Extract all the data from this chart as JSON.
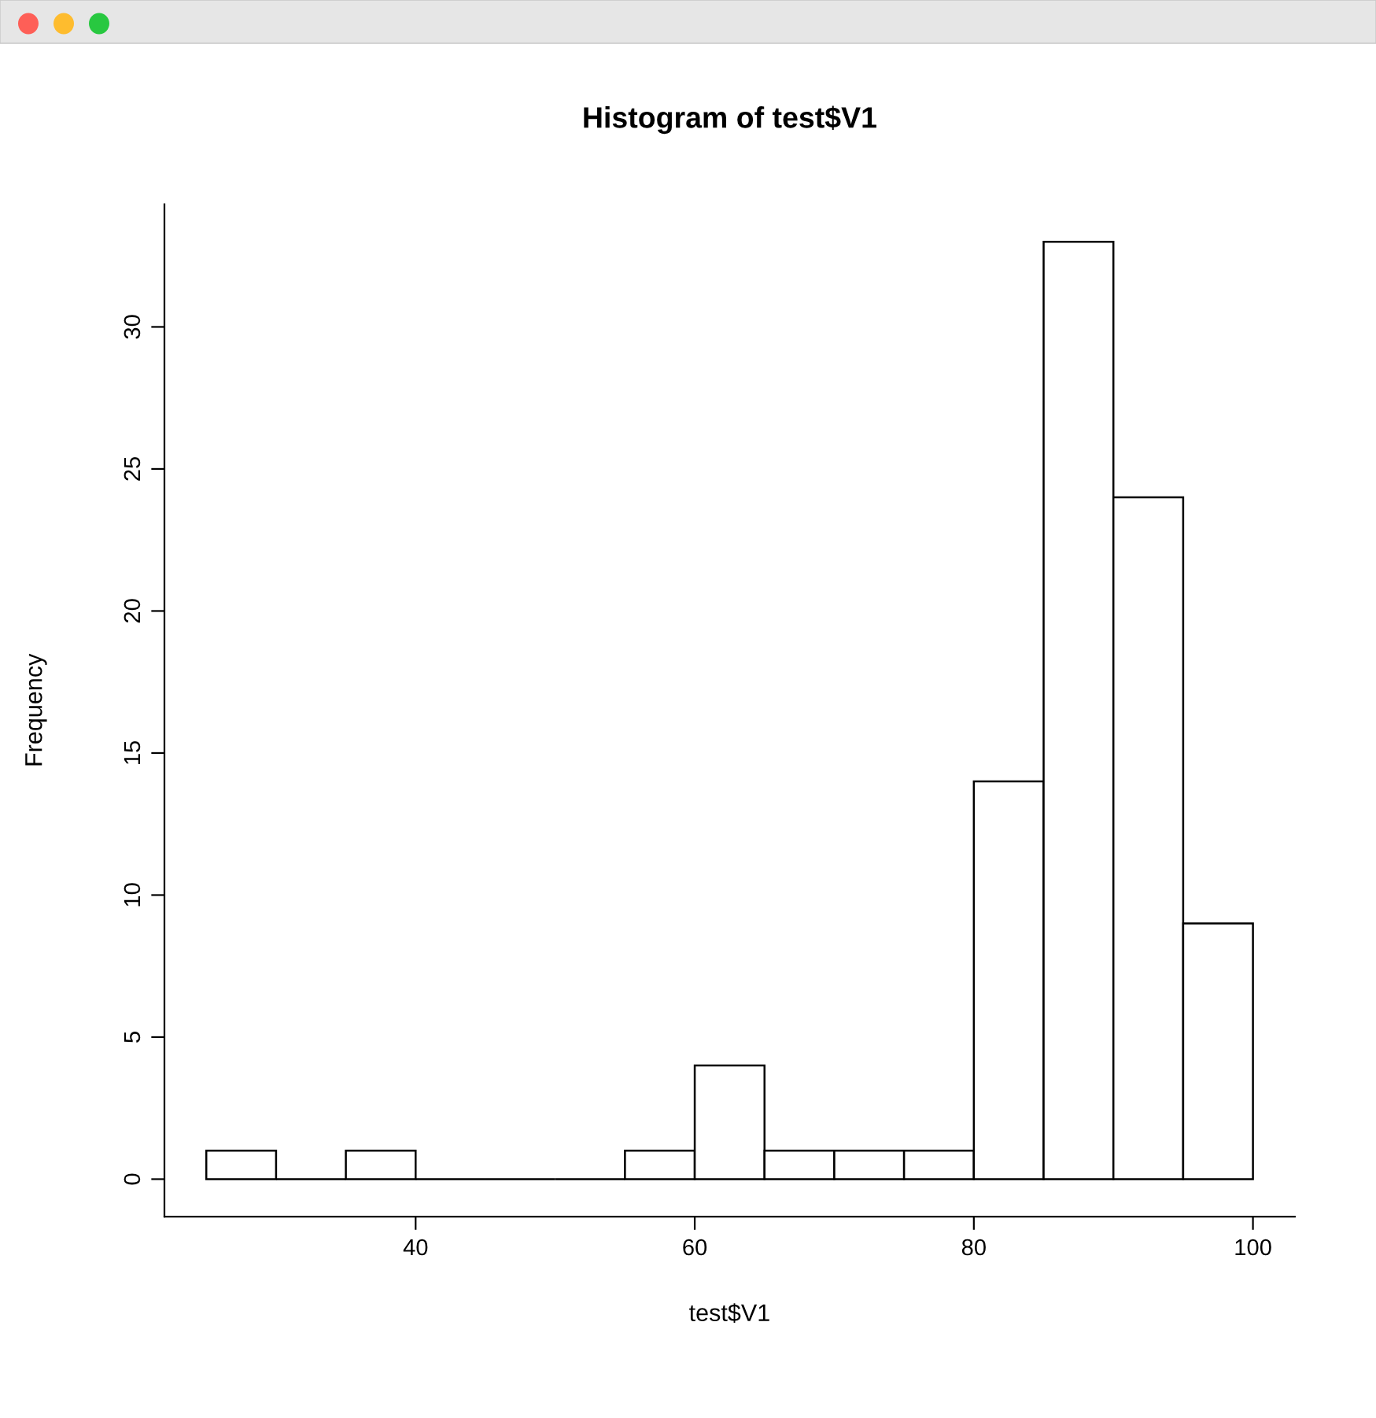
{
  "chart_data": {
    "type": "histogram",
    "title": "Histogram of test$V1",
    "xlabel": "test$V1",
    "ylabel": "Frequency",
    "bins": [
      25,
      30,
      35,
      40,
      45,
      50,
      55,
      60,
      65,
      70,
      75,
      80,
      85,
      90,
      95,
      100
    ],
    "values": [
      1,
      0,
      1,
      0,
      0,
      0,
      1,
      4,
      1,
      1,
      1,
      14,
      33,
      24,
      9
    ],
    "colors": [
      "#ffffff",
      "#000000",
      "#ffffff",
      "#000000",
      "#000000",
      "#000000",
      "#ffffff",
      "#ffffff",
      "#ffffff",
      "#ffffff",
      "#ffffff",
      "#ffffff",
      "#ffffff",
      "#ffffff",
      "#ffffff"
    ],
    "xlim": [
      22,
      103
    ],
    "xticks": [
      40,
      60,
      80,
      100
    ],
    "ylim": [
      -1.32,
      34.32
    ],
    "yticks": [
      0,
      5,
      10,
      15,
      20,
      25,
      30
    ],
    "grid": false
  }
}
